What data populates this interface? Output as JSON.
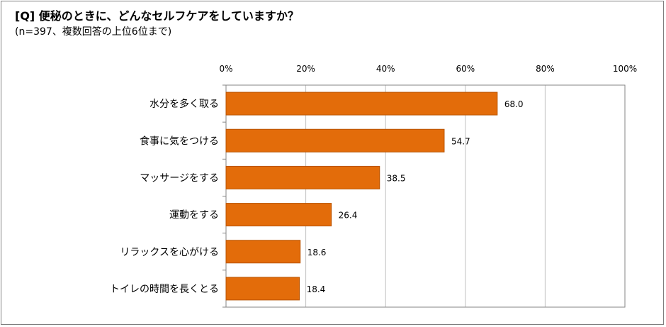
{
  "title": "[Q] 便秘のときに、どんなセルフケアをしていますか？",
  "subtitle": "(n=397、複数回答の上位6位まで)",
  "colors": {
    "bar": "#e36c0a",
    "bar_border": "#b85300",
    "grid": "#c0c0c0",
    "axis": "#868686"
  },
  "chart_data": {
    "type": "bar",
    "orientation": "horizontal",
    "categories": [
      "水分を多く取る",
      "食事に気をつける",
      "マッサージをする",
      "運動をする",
      "リラックスを心がける",
      "トイレの時間を長くとる"
    ],
    "values": [
      68.0,
      54.7,
      38.5,
      26.4,
      18.6,
      18.4
    ],
    "value_labels": [
      "68.0",
      "54.7",
      "38.5",
      "26.4",
      "18.6",
      "18.4"
    ],
    "xlim": [
      0,
      100
    ],
    "x_ticks": [
      "0%",
      "20%",
      "40%",
      "60%",
      "80%",
      "100%"
    ],
    "x_tick_values": [
      0,
      20,
      40,
      60,
      80,
      100
    ],
    "grid": true,
    "legend": "none"
  }
}
